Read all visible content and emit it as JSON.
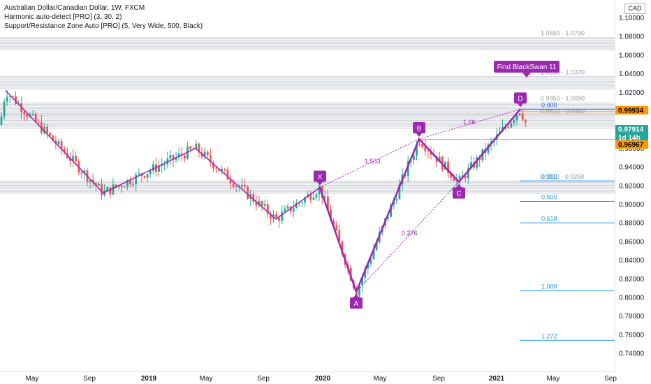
{
  "legend": {
    "line1": "Australian Dollar/Canadian Dollar, 1W, FXCM",
    "line2": "Harmonic auto-detect [PRO] (3, 30, 2)",
    "line3": "Support/Resistance Zone Auto [PRO] (5, Very Wide, 500, Black)"
  },
  "currency_button": "CAD",
  "annotation": {
    "label": "Find BlackSwan 11",
    "color": "#9c27b0"
  },
  "price_axis": {
    "ticks": [
      "1.10000",
      "1.08000",
      "1.06000",
      "1.04000",
      "1.02000",
      "0.98000",
      "0.96000",
      "0.94000",
      "0.92000",
      "0.90000",
      "0.88000",
      "0.86000",
      "0.84000",
      "0.82000",
      "0.80000",
      "0.78000",
      "0.76000",
      "0.74000"
    ],
    "badges": [
      {
        "value": "0.99934",
        "color": "#ff9800",
        "text_color": "#000000"
      },
      {
        "value": "0.97914",
        "color": "#26a69a",
        "text_color": "#ffffff"
      },
      {
        "value": "1d 14h",
        "color": "#26a69a",
        "text_color": "#ffffff"
      },
      {
        "value": "0.96967",
        "color": "#ff9800",
        "text_color": "#000000"
      }
    ]
  },
  "time_axis": {
    "labels": [
      {
        "text": "May",
        "bold": false
      },
      {
        "text": "Sep",
        "bold": false
      },
      {
        "text": "2019",
        "bold": true
      },
      {
        "text": "May",
        "bold": false
      },
      {
        "text": "Sep",
        "bold": false
      },
      {
        "text": "2020",
        "bold": true
      },
      {
        "text": "May",
        "bold": false
      },
      {
        "text": "Sep",
        "bold": false
      },
      {
        "text": "2021",
        "bold": true
      },
      {
        "text": "May",
        "bold": false
      },
      {
        "text": "Sep",
        "bold": false
      }
    ]
  },
  "zones": [
    {
      "label": "1.0650 - 1.0790",
      "low": 1.065,
      "high": 1.079
    },
    {
      "label": "1.0230 - 1.0370",
      "low": 1.023,
      "high": 1.037
    },
    {
      "label": "0.9950 - 1.0090",
      "low": 0.995,
      "high": 1.009
    },
    {
      "label": "0.9810 - 0.9950",
      "low": 0.981,
      "high": 0.995
    },
    {
      "label": "0.9110 - 0.9250",
      "low": 0.911,
      "high": 0.925
    }
  ],
  "pattern_points": [
    {
      "label": "X",
      "price": 0.918
    },
    {
      "label": "A",
      "price": 0.806
    },
    {
      "label": "B",
      "price": 0.97
    },
    {
      "label": "C",
      "price": 0.924
    },
    {
      "label": "D",
      "price": 1.002
    }
  ],
  "ratios": [
    {
      "label": "1.503"
    },
    {
      "label": "0.276"
    },
    {
      "label": "1.66"
    }
  ],
  "fib_levels": [
    {
      "label": "0.000",
      "price": 1.002,
      "color": "#2962ff"
    },
    {
      "label": "0.382",
      "price": 0.925,
      "color": "#2196f3"
    },
    {
      "label": "0.500",
      "price": 0.903,
      "color": "#2196f3"
    },
    {
      "label": "0.618",
      "price": 0.88,
      "color": "#2196f3"
    },
    {
      "label": "1.000",
      "price": 0.807,
      "color": "#2196f3"
    },
    {
      "label": "1.272",
      "price": 0.754,
      "color": "#2196f3"
    }
  ],
  "colors": {
    "up": "#26a69a",
    "down": "#ef5350",
    "pattern": "#9c27b0",
    "zone": "#b2b5be",
    "support_line": "#ff9800"
  }
}
